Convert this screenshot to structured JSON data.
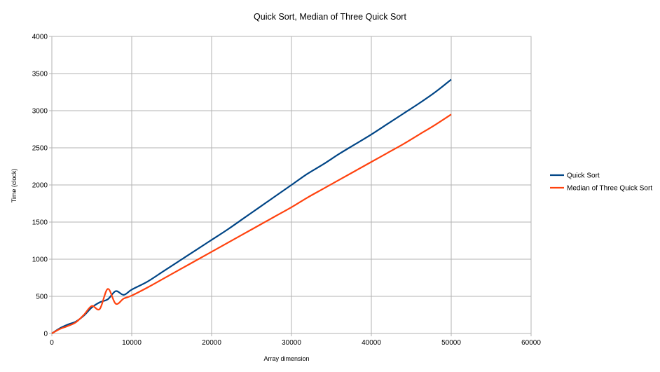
{
  "chart_data": {
    "type": "line",
    "title": "Quick Sort, Median of Three Quick Sort",
    "xlabel": "Array dimension",
    "ylabel": "Time (clock)",
    "xlim": [
      0,
      60000
    ],
    "ylim": [
      0,
      4000
    ],
    "xticks": [
      0,
      10000,
      20000,
      30000,
      40000,
      50000,
      60000
    ],
    "yticks": [
      0,
      500,
      1000,
      1500,
      2000,
      2500,
      3000,
      3500,
      4000
    ],
    "grid": true,
    "legend_position": "right",
    "series": [
      {
        "name": "Quick Sort",
        "color": "#004586",
        "x": [
          0,
          1000,
          2000,
          3000,
          4000,
          5000,
          6000,
          7000,
          8000,
          9000,
          10000,
          12000,
          14000,
          16000,
          18000,
          20000,
          22000,
          24000,
          26000,
          28000,
          30000,
          32000,
          34000,
          36000,
          38000,
          40000,
          42000,
          44000,
          46000,
          48000,
          50000
        ],
        "y": [
          0,
          70,
          120,
          160,
          240,
          350,
          420,
          460,
          570,
          520,
          590,
          700,
          840,
          980,
          1120,
          1260,
          1400,
          1550,
          1700,
          1850,
          2000,
          2150,
          2280,
          2420,
          2550,
          2680,
          2820,
          2960,
          3100,
          3250,
          3420
        ]
      },
      {
        "name": "Median of Three Quick Sort",
        "color": "#ff420e",
        "x": [
          0,
          1000,
          2000,
          3000,
          4000,
          5000,
          6000,
          7000,
          8000,
          9000,
          10000,
          12000,
          14000,
          16000,
          18000,
          20000,
          22000,
          24000,
          26000,
          28000,
          30000,
          32000,
          34000,
          36000,
          38000,
          40000,
          42000,
          44000,
          46000,
          48000,
          50000
        ],
        "y": [
          0,
          60,
          100,
          150,
          250,
          370,
          330,
          600,
          400,
          470,
          510,
          620,
          740,
          860,
          980,
          1100,
          1220,
          1340,
          1460,
          1580,
          1700,
          1830,
          1950,
          2070,
          2190,
          2310,
          2430,
          2550,
          2680,
          2810,
          2950
        ]
      }
    ]
  }
}
